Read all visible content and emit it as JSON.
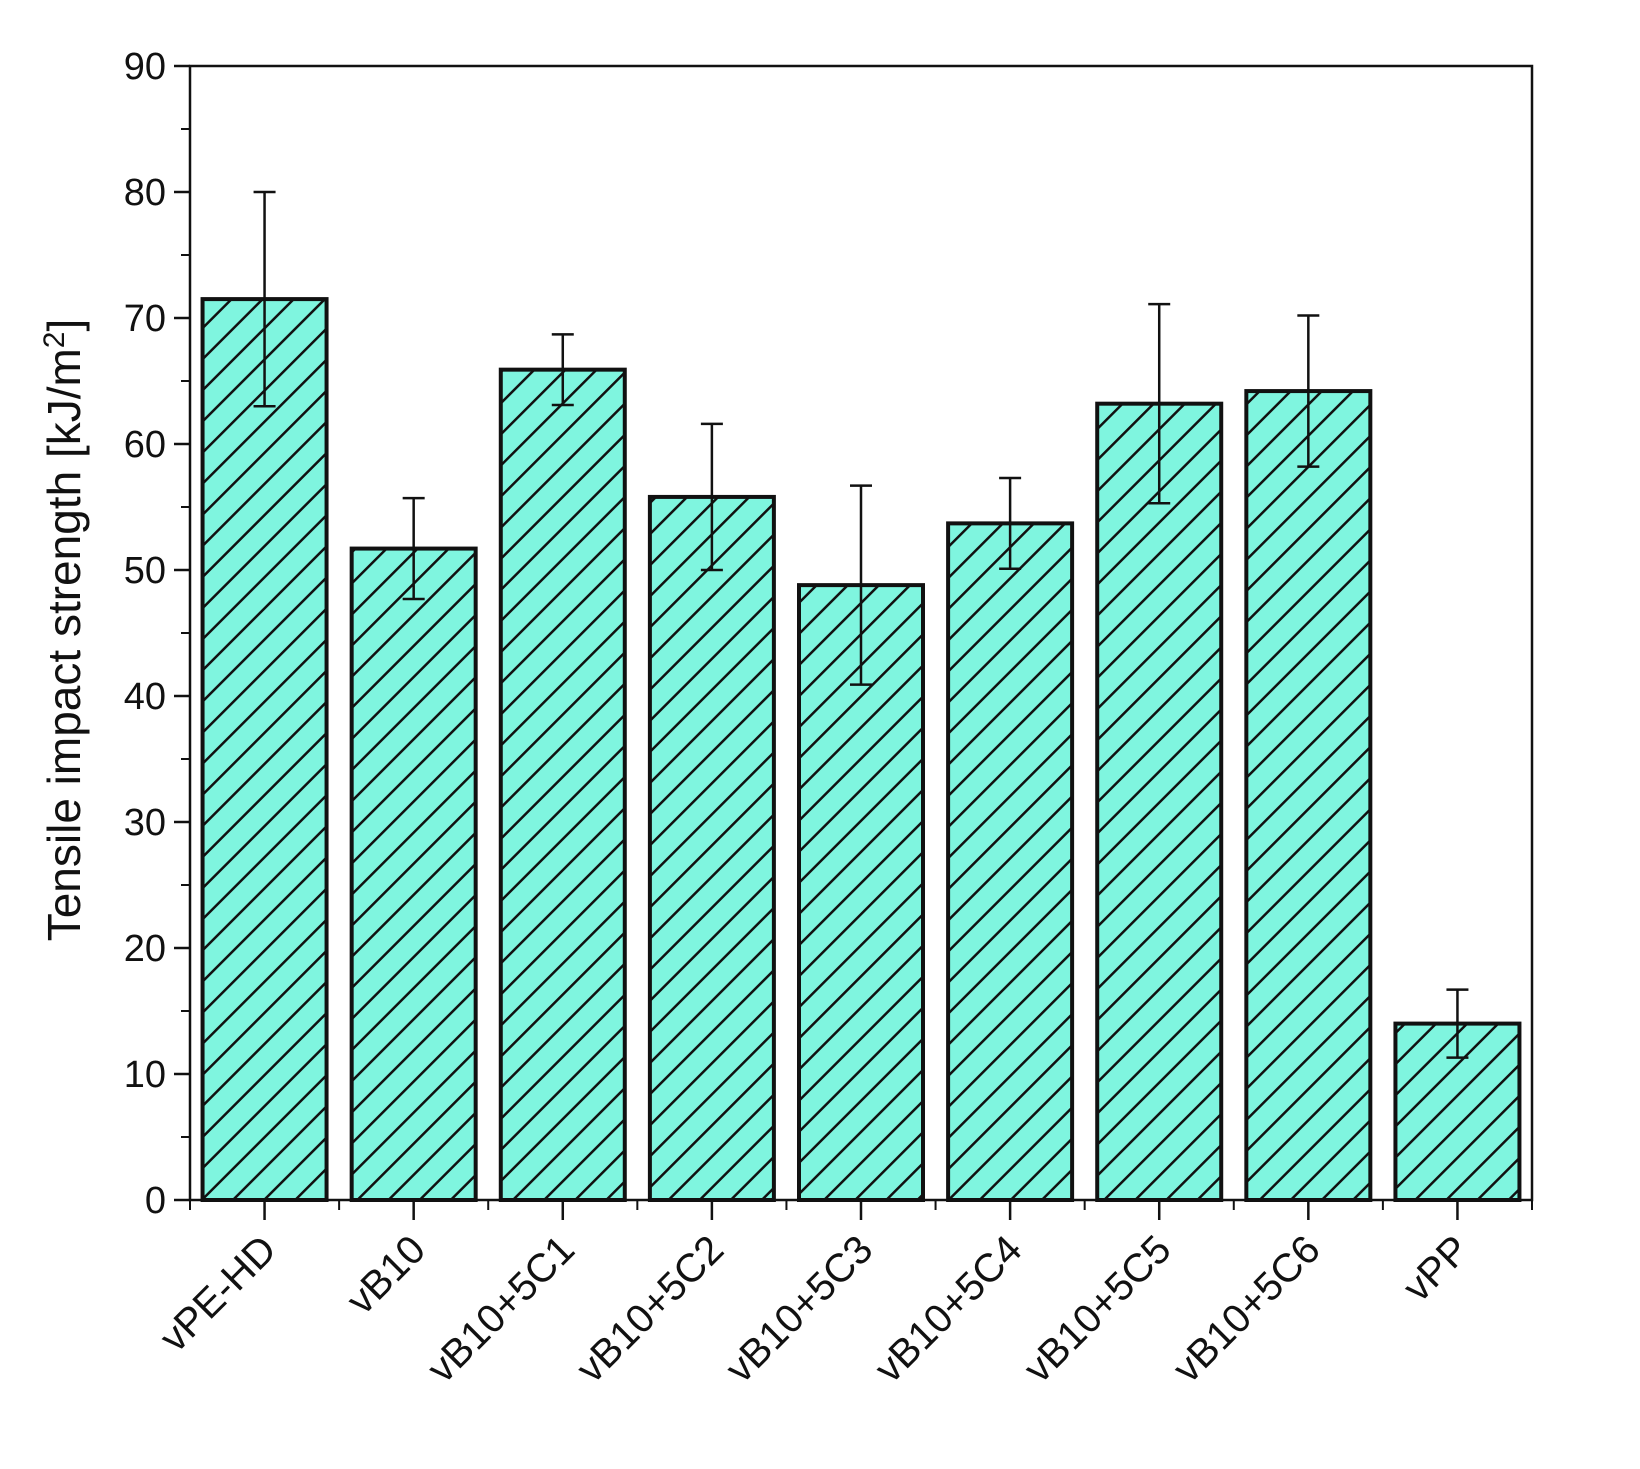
{
  "chart_data": {
    "type": "bar",
    "categories": [
      "vPE-HD",
      "vB10",
      "vB10+5C1",
      "vB10+5C2",
      "vB10+5C3",
      "vB10+5C4",
      "vB10+5C5",
      "vB10+5C6",
      "vPP"
    ],
    "values": [
      71.5,
      51.7,
      65.9,
      55.8,
      48.8,
      53.7,
      63.2,
      64.2,
      14.0
    ],
    "error_plus": [
      8.5,
      4.0,
      2.8,
      5.8,
      7.9,
      3.6,
      7.9,
      6.0,
      2.7
    ],
    "error_minus": [
      8.5,
      4.0,
      2.8,
      5.8,
      7.9,
      3.6,
      7.9,
      6.0,
      2.7
    ],
    "ylabel": "Tensile impact strength [kJ/m",
    "ylabel_superscript": "2",
    "ylabel_suffix": "]",
    "xlabel": "",
    "ylim": [
      0,
      90
    ],
    "yticks": [
      0,
      10,
      20,
      30,
      40,
      50,
      60,
      70,
      80,
      90
    ],
    "bar_color": "#7ff5df",
    "hatch_color": "#111111",
    "grid": false,
    "legend": "none"
  }
}
